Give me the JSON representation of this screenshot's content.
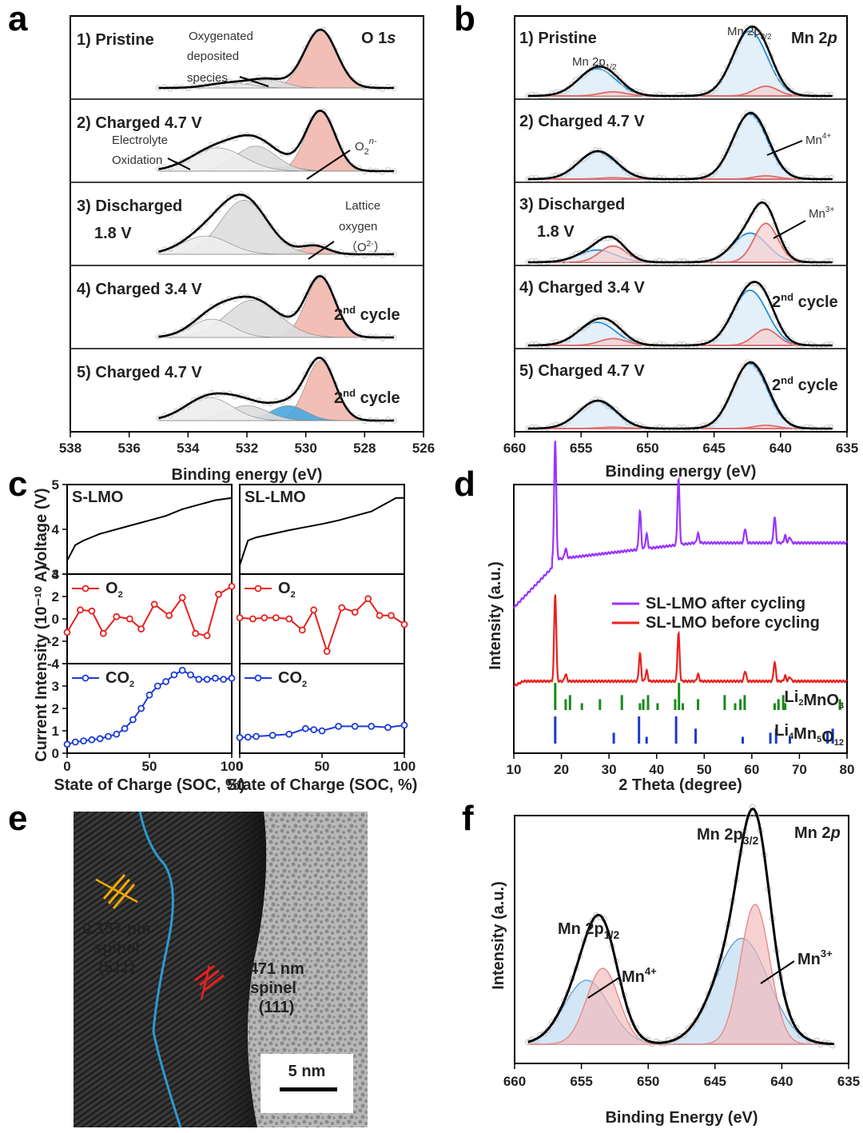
{
  "panel_labels": [
    "a",
    "b",
    "c",
    "d",
    "e",
    "f"
  ],
  "chart_data": [
    {
      "id": "a",
      "type": "line",
      "title": "O 1s",
      "xlabel": "Binding energy (eV)",
      "xlim": [
        538,
        526
      ],
      "xticks": [
        538,
        536,
        534,
        532,
        530,
        528,
        526
      ],
      "spectra": [
        {
          "label": "1) Pristine",
          "tag": "",
          "peaks": [
            {
              "c": 529.5,
              "h": 0.7,
              "w": 0.55,
              "fill": "#f2b8ad"
            },
            {
              "c": 531.3,
              "h": 0.1,
              "w": 0.6,
              "fill": "#dddddd"
            },
            {
              "c": 532.6,
              "h": 0.06,
              "w": 0.7,
              "fill": "#eeeeee"
            }
          ]
        },
        {
          "label": "2) Charged 4.7 V",
          "tag": "",
          "peaks": [
            {
              "c": 529.5,
              "h": 0.72,
              "w": 0.5,
              "fill": "#f2b8ad"
            },
            {
              "c": 530.8,
              "h": 0.05,
              "w": 0.6,
              "fill": "#7db8e8"
            },
            {
              "c": 531.7,
              "h": 0.3,
              "w": 0.7,
              "fill": "#dddddd"
            },
            {
              "c": 533.0,
              "h": 0.28,
              "w": 0.9,
              "fill": "#eeeeee"
            }
          ]
        },
        {
          "label": "3) Discharged",
          "tag": "1.8 V",
          "peaks": [
            {
              "c": 529.7,
              "h": 0.1,
              "w": 0.45,
              "fill": "#f2b8ad"
            },
            {
              "c": 532.1,
              "h": 0.65,
              "w": 0.8,
              "fill": "#dddddd"
            },
            {
              "c": 533.4,
              "h": 0.22,
              "w": 0.8,
              "fill": "#eeeeee"
            }
          ]
        },
        {
          "label": "4) Charged 3.4 V",
          "tag": "2nd cycle",
          "peaks": [
            {
              "c": 529.5,
              "h": 0.72,
              "w": 0.5,
              "fill": "#f2b8ad"
            },
            {
              "c": 531.8,
              "h": 0.45,
              "w": 0.9,
              "fill": "#dddddd"
            },
            {
              "c": 533.2,
              "h": 0.22,
              "w": 0.7,
              "fill": "#eeeeee"
            }
          ]
        },
        {
          "label": "5) Charged 4.7 V",
          "tag": "2nd cycle",
          "peaks": [
            {
              "c": 529.5,
              "h": 0.72,
              "w": 0.5,
              "fill": "#f2b8ad"
            },
            {
              "c": 530.6,
              "h": 0.18,
              "w": 0.6,
              "fill": "#4aa8e0"
            },
            {
              "c": 532.0,
              "h": 0.18,
              "w": 0.7,
              "fill": "#dddddd"
            },
            {
              "c": 533.3,
              "h": 0.28,
              "w": 0.8,
              "fill": "#eeeeee"
            }
          ]
        }
      ],
      "annotations": [
        "Oxygenated",
        "deposited",
        "species",
        "Electrolyte",
        "Oxidation",
        "O",
        "2",
        "n-",
        "Lattice",
        "oxygen",
        "（O",
        "2-",
        "）"
      ]
    },
    {
      "id": "b",
      "type": "line",
      "title": "Mn 2p",
      "xlabel": "Binding energy (eV)",
      "xlim": [
        660,
        635
      ],
      "xticks": [
        660,
        655,
        650,
        645,
        640,
        635
      ],
      "spectra": [
        {
          "label": "1) Pristine",
          "tag": "",
          "mn4": 1.0,
          "mn3": 0.15
        },
        {
          "label": "2) Charged 4.7 V",
          "tag": "",
          "mn4": 1.0,
          "mn3": 0.05
        },
        {
          "label": "3) Discharged",
          "tag": "1.8 V",
          "mn4": 0.45,
          "mn3": 0.6
        },
        {
          "label": "4) Charged 3.4 V",
          "tag": "2nd cycle",
          "mn4": 0.85,
          "mn3": 0.25
        },
        {
          "label": "5) Charged 4.7 V",
          "tag": "2nd cycle",
          "mn4": 1.0,
          "mn3": 0.05
        }
      ],
      "annotations": [
        "Mn 2p",
        "1/2",
        "3/2",
        "Mn",
        "4+",
        "3+"
      ]
    },
    {
      "id": "c",
      "type": "line",
      "xlabel": "State of Charge (SOC, %)",
      "ylabel": "Current Intensity (10⁻¹⁰ A)",
      "ylabel_top": "Voltage (V)",
      "xlim": [
        0,
        100
      ],
      "xticks": [
        0,
        50,
        100
      ],
      "subplots": [
        {
          "name": "S-LMO",
          "voltage": {
            "x": [
              0,
              5,
              10,
              20,
              30,
              40,
              50,
              60,
              70,
              80,
              90,
              100
            ],
            "y": [
              3.3,
              3.65,
              3.75,
              3.9,
              4.0,
              4.1,
              4.2,
              4.3,
              4.45,
              4.55,
              4.65,
              4.7
            ]
          },
          "o2": {
            "x": [
              0,
              8,
              15,
              22,
              30,
              38,
              45,
              53,
              62,
              70,
              78,
              85,
              92,
              100
            ],
            "y": [
              -1.2,
              0.8,
              0.7,
              -1.3,
              0.2,
              0.0,
              -0.9,
              1.3,
              0.3,
              1.9,
              -1.3,
              -1.5,
              2.2,
              2.9
            ]
          },
          "co2": {
            "x": [
              0,
              5,
              10,
              15,
              20,
              25,
              30,
              35,
              40,
              45,
              50,
              55,
              60,
              65,
              70,
              75,
              80,
              85,
              90,
              95,
              100
            ],
            "y": [
              0.4,
              0.5,
              0.55,
              0.6,
              0.65,
              0.75,
              0.85,
              1.1,
              1.5,
              2.0,
              2.6,
              3.0,
              3.2,
              3.5,
              3.7,
              3.5,
              3.3,
              3.3,
              3.35,
              3.3,
              3.35
            ]
          }
        },
        {
          "name": "SL-LMO",
          "voltage": {
            "x": [
              0,
              5,
              10,
              20,
              30,
              40,
              50,
              60,
              70,
              80,
              85,
              90,
              95,
              100
            ],
            "y": [
              3.2,
              3.75,
              3.82,
              3.9,
              3.98,
              4.05,
              4.12,
              4.2,
              4.3,
              4.4,
              4.5,
              4.6,
              4.7,
              4.7
            ]
          },
          "o2": {
            "x": [
              0,
              8,
              15,
              22,
              30,
              38,
              45,
              53,
              62,
              70,
              78,
              85,
              92,
              100
            ],
            "y": [
              0.1,
              0.0,
              0.1,
              0.1,
              0.0,
              -1.0,
              0.8,
              -2.9,
              1.0,
              0.6,
              1.8,
              0.3,
              0.3,
              -0.5
            ]
          },
          "co2": {
            "x": [
              0,
              5,
              10,
              20,
              30,
              40,
              45,
              50,
              60,
              70,
              80,
              90,
              100
            ],
            "y": [
              0.7,
              0.72,
              0.75,
              0.8,
              0.85,
              1.1,
              1.05,
              1.0,
              1.2,
              1.2,
              1.2,
              1.15,
              1.25
            ]
          }
        }
      ],
      "series": [
        {
          "name": "O2"
        },
        {
          "name": "CO2"
        }
      ]
    },
    {
      "id": "d",
      "type": "line",
      "xlabel": "2 Theta (degree)",
      "ylabel": "Intensity (a.u.)",
      "xlim": [
        10,
        80
      ],
      "xticks": [
        10,
        20,
        30,
        40,
        50,
        60,
        70,
        80
      ],
      "series": [
        {
          "name": "SL-LMO after cycling",
          "color": "#9933ff"
        },
        {
          "name": "SL-LMO before cycling",
          "color": "#e8211d"
        }
      ],
      "reference": [
        {
          "name": "Li2MnO3",
          "color": "#1a8a1a",
          "peaks": [
            18.7,
            20.9,
            21.8,
            24.3,
            28.1,
            32.7,
            36.5,
            37.2,
            38.2,
            40.2,
            43.9,
            44.7,
            45.5,
            48.7,
            54.3,
            56.5,
            57.6,
            58.5,
            64.8,
            65.6,
            66.6,
            67.0,
            78.5
          ]
        },
        {
          "name": "Li4Mn5O12",
          "color": "#1a3acc",
          "peaks": [
            18.7,
            31.0,
            36.3,
            37.9,
            44.1,
            48.2,
            58.1,
            63.9,
            65.1,
            68.0,
            75.9,
            77.0
          ]
        }
      ]
    },
    {
      "id": "e",
      "type": "image",
      "annotations": [
        "0.157 nm",
        "spinel",
        "(511)",
        "0.471 nm",
        "spinel",
        "(111)",
        "5 nm"
      ]
    },
    {
      "id": "f",
      "type": "line",
      "title": "Mn 2p",
      "xlabel": "Binding Energy (eV)",
      "ylabel": "Intensity (a.u.)",
      "xlim": [
        660,
        635
      ],
      "xticks": [
        660,
        655,
        650,
        645,
        640,
        635
      ],
      "annotations": [
        "Mn 2p",
        "3/2",
        "1/2",
        "Mn",
        "4+",
        "3+"
      ]
    }
  ],
  "colors": {
    "lattice": "#f2b8ad",
    "mn4_line": "#1f8fdb",
    "mn3_line": "#e06a66",
    "co2": "#1e3cd6",
    "o2": "#e8211d",
    "mn4_fill": "#d7e8f6",
    "mn3_fill": "#f6cfcf"
  }
}
